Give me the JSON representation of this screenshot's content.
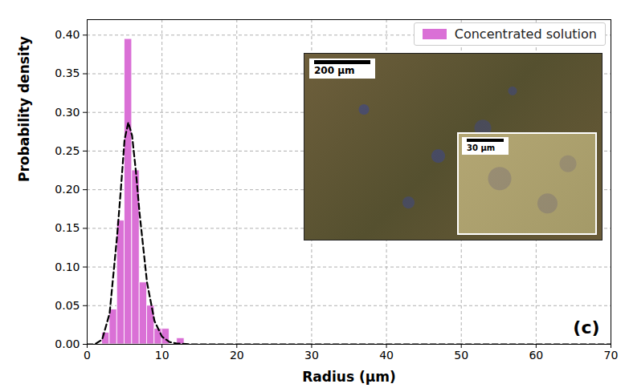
{
  "chart_data": {
    "type": "histogram",
    "x_label": "Radius (µm)",
    "y_label": "Probability density",
    "panel_label": "(c)",
    "legend": "top-right",
    "grid": true,
    "series": [
      {
        "name": "Concentrated solution",
        "type": "bar",
        "color": "#da70d6",
        "bins": [
          2,
          3,
          4,
          5,
          6,
          7,
          8,
          9,
          10,
          11,
          12,
          13
        ],
        "values": [
          0.015,
          0.045,
          0.16,
          0.395,
          0.225,
          0.08,
          0.05,
          0.02,
          0.02,
          0,
          0.008
        ]
      },
      {
        "type": "line",
        "line_style": "dashed",
        "color": "#000000",
        "x": [
          0,
          1,
          2,
          3,
          4,
          4.5,
          5,
          5.5,
          6,
          6.5,
          7,
          8,
          9,
          10,
          11,
          12,
          14,
          70
        ],
        "values": [
          0,
          0,
          0.006,
          0.04,
          0.14,
          0.2,
          0.265,
          0.287,
          0.27,
          0.225,
          0.17,
          0.08,
          0.03,
          0.01,
          0.003,
          0.001,
          0,
          0
        ]
      }
    ],
    "xlim": [
      0,
      70
    ],
    "xticks": [
      0,
      10,
      20,
      30,
      40,
      50,
      60,
      70
    ],
    "ylim": [
      0,
      0.42
    ],
    "yticks": [
      {
        "value": 0,
        "label": "0.00"
      },
      {
        "value": 0.05,
        "label": "0.05"
      },
      {
        "value": 0.1,
        "label": "0.10"
      },
      {
        "value": 0.15,
        "label": "0.15"
      },
      {
        "value": 0.2,
        "label": "0.20"
      },
      {
        "value": 0.25,
        "label": "0.25"
      },
      {
        "value": 0.3,
        "label": "0.30"
      },
      {
        "value": 0.35,
        "label": "0.35"
      },
      {
        "value": 0.4,
        "label": "0.40"
      }
    ],
    "inset": {
      "scale_bar": "200 µm",
      "zoom_scale_bar": "30 µm"
    }
  }
}
